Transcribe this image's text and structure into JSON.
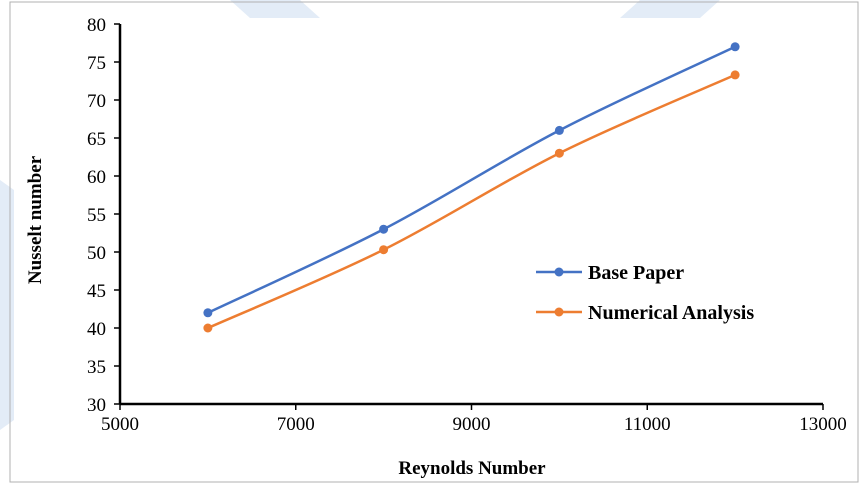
{
  "chart_data": {
    "type": "line",
    "title": "",
    "xlabel": "Reynolds Number",
    "ylabel": "Nusselt number",
    "xlim": [
      5000,
      13000
    ],
    "ylim": [
      30,
      80
    ],
    "xticks": [
      5000,
      7000,
      9000,
      11000,
      13000
    ],
    "yticks": [
      30,
      35,
      40,
      45,
      50,
      55,
      60,
      65,
      70,
      75,
      80
    ],
    "grid": false,
    "legend_position": "right-middle",
    "series": [
      {
        "name": "Base Paper",
        "color": "#4472C4",
        "x": [
          6000,
          8000,
          10000,
          12000
        ],
        "y": [
          42,
          53,
          66,
          77
        ]
      },
      {
        "name": "Numerical Analysis",
        "color": "#ED7D31",
        "x": [
          6000,
          8000,
          10000,
          12000
        ],
        "y": [
          40,
          50.3,
          63,
          73.3
        ]
      }
    ]
  },
  "colors": {
    "background_stripes": "#dfe9f5",
    "axis": "#000000"
  }
}
